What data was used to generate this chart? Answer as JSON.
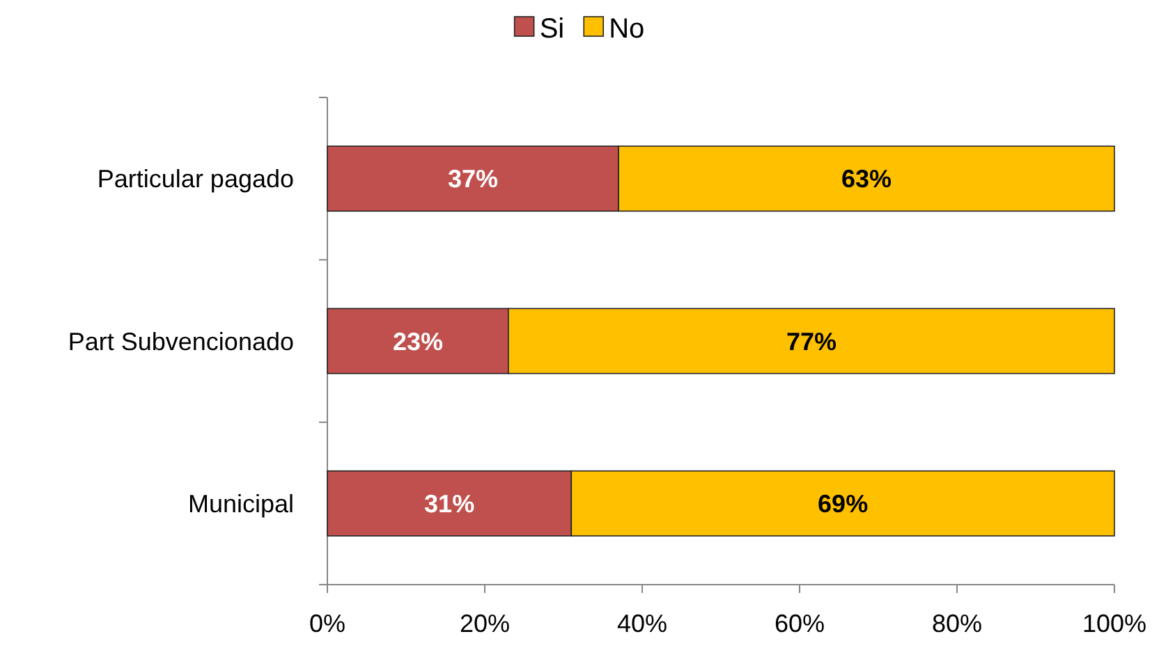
{
  "chart_data": {
    "type": "bar",
    "orientation": "horizontal",
    "stacked": true,
    "categories": [
      "Particular pagado",
      "Part Subvencionado",
      "Municipal"
    ],
    "series": [
      {
        "name": "Si",
        "color": "#c0504d",
        "values": [
          37,
          23,
          31
        ],
        "value_labels": [
          "37%",
          "23%",
          "31%"
        ]
      },
      {
        "name": "No",
        "color": "#ffc000",
        "values": [
          63,
          77,
          69
        ],
        "value_labels": [
          "63%",
          "77%",
          "69%"
        ]
      }
    ],
    "xlim": [
      0,
      100
    ],
    "xticks": [
      {
        "value": 0,
        "label": "0%"
      },
      {
        "value": 20,
        "label": "20%"
      },
      {
        "value": 40,
        "label": "40%"
      },
      {
        "value": 60,
        "label": "60%"
      },
      {
        "value": 80,
        "label": "80%"
      },
      {
        "value": 100,
        "label": "100%"
      }
    ],
    "legend": "top",
    "grid": false
  }
}
